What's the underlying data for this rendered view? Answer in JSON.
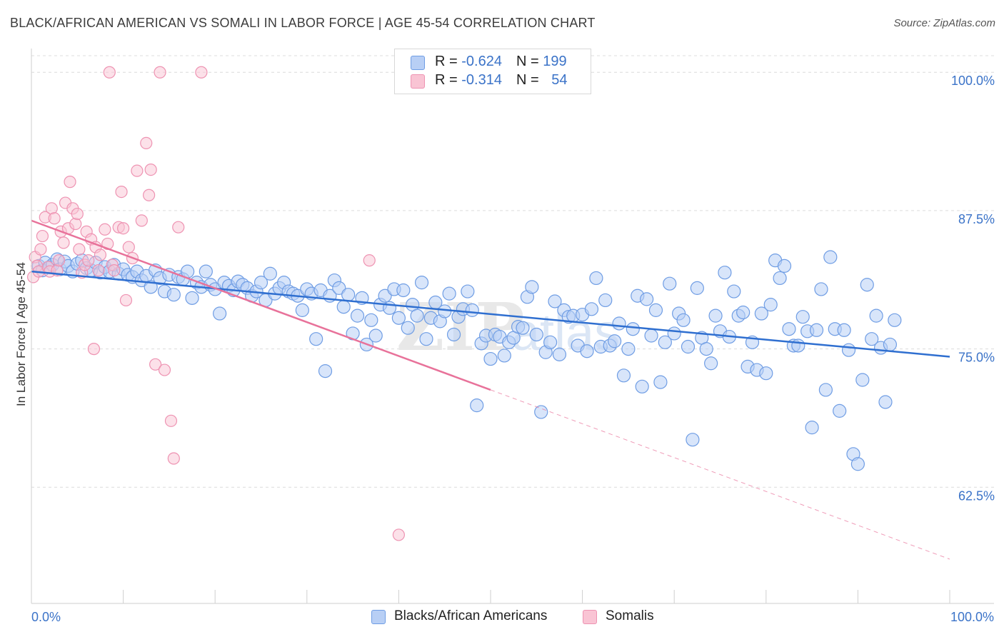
{
  "title": "BLACK/AFRICAN AMERICAN VS SOMALI IN LABOR FORCE | AGE 45-54 CORRELATION CHART",
  "source": "Source: ZipAtlas.com",
  "colors": {
    "blue_fill": "#b8cff5",
    "blue_stroke": "#6f9de4",
    "blue_line": "#2f6fd0",
    "pink_fill": "#f9c4d4",
    "pink_stroke": "#ee93b2",
    "pink_line": "#e8729a",
    "tick_label": "#3b73c8",
    "grid": "#dcdcdc"
  },
  "legend_top": {
    "rows": [
      {
        "r_label": "R = ",
        "r_value": "-0.624",
        "n_label": "N = ",
        "n_value": "199"
      },
      {
        "r_label": "R = ",
        "r_value": "-0.314",
        "n_label": "N = ",
        "n_value": "54"
      }
    ]
  },
  "legend_bottom": [
    "Blacks/African Americans",
    "Somalis"
  ],
  "chart_data": {
    "type": "scatter",
    "ylabel": "In Labor Force | Age 45-54",
    "xlabel": "",
    "x_tick_labels": [
      "0.0%",
      "100.0%"
    ],
    "y_tick_labels": [
      "100.0%",
      "87.5%",
      "75.0%",
      "62.5%"
    ],
    "y_tick_values": [
      100.0,
      87.5,
      75.0,
      62.5
    ],
    "xlim": [
      0,
      100
    ],
    "ylim": [
      52.0,
      101.5
    ],
    "grid": true,
    "watermark": "ZIPatlas",
    "series": [
      {
        "name": "Blacks/African Americans",
        "trend": {
          "x": [
            0,
            100
          ],
          "y": [
            82.0,
            74.3
          ]
        },
        "points": [
          [
            0.8,
            82.5
          ],
          [
            1.2,
            82.1
          ],
          [
            1.5,
            82.8
          ],
          [
            2.0,
            82.4
          ],
          [
            2.3,
            82.6
          ],
          [
            2.8,
            83.1
          ],
          [
            3.1,
            82.2
          ],
          [
            3.6,
            82.9
          ],
          [
            4.0,
            82.5
          ],
          [
            4.5,
            82.0
          ],
          [
            5.0,
            82.7
          ],
          [
            5.5,
            83.0
          ],
          [
            6.0,
            82.3
          ],
          [
            6.5,
            82.1
          ],
          [
            7.0,
            82.8
          ],
          [
            7.5,
            81.9
          ],
          [
            8.0,
            82.4
          ],
          [
            8.5,
            82.0
          ],
          [
            9.0,
            82.6
          ],
          [
            9.5,
            81.8
          ],
          [
            10.0,
            82.2
          ],
          [
            10.5,
            81.7
          ],
          [
            11.0,
            81.5
          ],
          [
            11.5,
            82.0
          ],
          [
            12.0,
            81.2
          ],
          [
            12.5,
            81.6
          ],
          [
            13.0,
            80.6
          ],
          [
            13.5,
            82.1
          ],
          [
            14.0,
            81.4
          ],
          [
            14.5,
            80.2
          ],
          [
            15.0,
            81.7
          ],
          [
            15.5,
            79.9
          ],
          [
            16.0,
            81.5
          ],
          [
            16.5,
            81.3
          ],
          [
            17.0,
            82.0
          ],
          [
            17.5,
            79.6
          ],
          [
            18.0,
            81.0
          ],
          [
            18.5,
            80.6
          ],
          [
            19.0,
            82.0
          ],
          [
            19.5,
            80.8
          ],
          [
            20.0,
            80.4
          ],
          [
            20.5,
            78.2
          ],
          [
            21.0,
            81.0
          ],
          [
            21.5,
            80.7
          ],
          [
            22.0,
            80.3
          ],
          [
            22.5,
            81.1
          ],
          [
            23.0,
            80.8
          ],
          [
            23.5,
            80.5
          ],
          [
            24.0,
            79.8
          ],
          [
            24.5,
            80.2
          ],
          [
            25.0,
            81.0
          ],
          [
            25.5,
            79.4
          ],
          [
            26.0,
            81.8
          ],
          [
            26.5,
            80.0
          ],
          [
            27.0,
            80.5
          ],
          [
            27.5,
            81.0
          ],
          [
            28.0,
            80.2
          ],
          [
            28.5,
            80.0
          ],
          [
            29.0,
            79.8
          ],
          [
            29.5,
            78.5
          ],
          [
            30.0,
            80.4
          ],
          [
            30.5,
            80.0
          ],
          [
            31.0,
            75.9
          ],
          [
            31.5,
            80.3
          ],
          [
            32.0,
            73.0
          ],
          [
            32.5,
            79.8
          ],
          [
            33.0,
            81.2
          ],
          [
            33.5,
            80.5
          ],
          [
            34.0,
            78.8
          ],
          [
            34.5,
            79.9
          ],
          [
            35.0,
            76.4
          ],
          [
            35.5,
            78.0
          ],
          [
            36.0,
            79.6
          ],
          [
            36.5,
            75.4
          ],
          [
            37.0,
            77.6
          ],
          [
            37.5,
            76.2
          ],
          [
            38.0,
            79.0
          ],
          [
            38.5,
            79.8
          ],
          [
            39.0,
            78.7
          ],
          [
            39.5,
            80.4
          ],
          [
            40.0,
            77.8
          ],
          [
            40.5,
            80.3
          ],
          [
            41.0,
            76.9
          ],
          [
            41.5,
            79.0
          ],
          [
            42.0,
            78.0
          ],
          [
            42.5,
            81.0
          ],
          [
            43.0,
            75.9
          ],
          [
            43.5,
            77.8
          ],
          [
            44.0,
            79.2
          ],
          [
            44.5,
            77.5
          ],
          [
            45.0,
            78.4
          ],
          [
            45.5,
            80.0
          ],
          [
            46.0,
            76.3
          ],
          [
            46.5,
            77.9
          ],
          [
            47.0,
            78.6
          ],
          [
            47.5,
            80.2
          ],
          [
            48.0,
            78.5
          ],
          [
            48.5,
            69.9
          ],
          [
            49.0,
            75.5
          ],
          [
            49.5,
            76.2
          ],
          [
            50.0,
            74.1
          ],
          [
            50.5,
            76.3
          ],
          [
            51.0,
            76.1
          ],
          [
            51.5,
            74.4
          ],
          [
            52.0,
            75.6
          ],
          [
            52.5,
            76.0
          ],
          [
            53.0,
            77.0
          ],
          [
            53.5,
            76.9
          ],
          [
            54.0,
            79.7
          ],
          [
            54.5,
            80.6
          ],
          [
            55.0,
            76.3
          ],
          [
            55.5,
            69.3
          ],
          [
            56.0,
            74.7
          ],
          [
            56.5,
            75.6
          ],
          [
            57.0,
            79.3
          ],
          [
            57.5,
            74.5
          ],
          [
            58.0,
            78.5
          ],
          [
            58.5,
            77.9
          ],
          [
            59.0,
            78.0
          ],
          [
            59.5,
            75.3
          ],
          [
            60.0,
            78.1
          ],
          [
            60.5,
            74.8
          ],
          [
            61.0,
            78.6
          ],
          [
            61.5,
            81.4
          ],
          [
            62.0,
            75.2
          ],
          [
            62.5,
            79.4
          ],
          [
            63.0,
            75.3
          ],
          [
            63.5,
            75.7
          ],
          [
            64.0,
            77.3
          ],
          [
            64.5,
            72.6
          ],
          [
            65.0,
            75.0
          ],
          [
            65.5,
            76.8
          ],
          [
            66.0,
            79.8
          ],
          [
            66.5,
            71.6
          ],
          [
            67.0,
            79.5
          ],
          [
            67.5,
            76.2
          ],
          [
            68.0,
            78.5
          ],
          [
            68.5,
            72.0
          ],
          [
            69.0,
            75.6
          ],
          [
            69.5,
            80.9
          ],
          [
            70.0,
            76.4
          ],
          [
            70.5,
            78.2
          ],
          [
            71.0,
            77.6
          ],
          [
            71.5,
            75.2
          ],
          [
            72.0,
            66.8
          ],
          [
            72.5,
            80.5
          ],
          [
            73.0,
            76.0
          ],
          [
            73.5,
            75.0
          ],
          [
            74.0,
            73.7
          ],
          [
            74.5,
            78.0
          ],
          [
            75.0,
            76.6
          ],
          [
            75.5,
            81.9
          ],
          [
            76.0,
            76.1
          ],
          [
            76.5,
            80.2
          ],
          [
            77.0,
            78.0
          ],
          [
            77.5,
            78.3
          ],
          [
            78.0,
            73.4
          ],
          [
            78.5,
            75.6
          ],
          [
            79.0,
            73.1
          ],
          [
            79.5,
            78.2
          ],
          [
            80.0,
            72.8
          ],
          [
            80.5,
            79.0
          ],
          [
            81.0,
            83.0
          ],
          [
            81.5,
            81.4
          ],
          [
            82.0,
            82.5
          ],
          [
            82.5,
            76.8
          ],
          [
            83.0,
            75.3
          ],
          [
            83.5,
            75.3
          ],
          [
            84.0,
            77.9
          ],
          [
            84.5,
            76.6
          ],
          [
            85.0,
            67.9
          ],
          [
            85.5,
            76.7
          ],
          [
            86.0,
            80.4
          ],
          [
            86.5,
            71.3
          ],
          [
            87.0,
            83.3
          ],
          [
            87.5,
            76.8
          ],
          [
            88.0,
            69.4
          ],
          [
            88.5,
            76.7
          ],
          [
            89.0,
            74.9
          ],
          [
            89.5,
            65.5
          ],
          [
            90.0,
            64.6
          ],
          [
            90.5,
            72.2
          ],
          [
            91.0,
            80.8
          ],
          [
            91.5,
            75.9
          ],
          [
            92.0,
            78.0
          ],
          [
            92.5,
            75.1
          ],
          [
            93.0,
            70.2
          ],
          [
            93.5,
            75.4
          ],
          [
            94.0,
            77.6
          ]
        ]
      },
      {
        "name": "Somalis",
        "trend": {
          "x": [
            0,
            50
          ],
          "y": [
            86.6,
            71.3
          ]
        },
        "trend_dashed": {
          "x": [
            50,
            100
          ],
          "y": [
            71.3,
            56.0
          ]
        },
        "points": [
          [
            0.2,
            81.5
          ],
          [
            0.4,
            83.3
          ],
          [
            0.6,
            82.5
          ],
          [
            0.8,
            82.0
          ],
          [
            1.0,
            84.0
          ],
          [
            1.2,
            85.2
          ],
          [
            1.5,
            86.9
          ],
          [
            1.8,
            82.4
          ],
          [
            2.0,
            82.0
          ],
          [
            2.2,
            87.7
          ],
          [
            2.5,
            86.8
          ],
          [
            2.8,
            82.1
          ],
          [
            3.0,
            83.0
          ],
          [
            3.2,
            85.6
          ],
          [
            3.5,
            84.6
          ],
          [
            3.7,
            88.2
          ],
          [
            4.0,
            85.9
          ],
          [
            4.2,
            90.1
          ],
          [
            4.5,
            87.7
          ],
          [
            4.8,
            86.3
          ],
          [
            5.0,
            87.2
          ],
          [
            5.2,
            84.0
          ],
          [
            5.5,
            81.9
          ],
          [
            5.8,
            82.6
          ],
          [
            6.0,
            85.6
          ],
          [
            6.2,
            83.0
          ],
          [
            6.5,
            84.9
          ],
          [
            6.8,
            75.0
          ],
          [
            7.0,
            84.2
          ],
          [
            7.3,
            82.1
          ],
          [
            7.5,
            83.5
          ],
          [
            8.0,
            85.8
          ],
          [
            8.3,
            84.5
          ],
          [
            8.5,
            100.0
          ],
          [
            8.8,
            82.6
          ],
          [
            9.0,
            82.1
          ],
          [
            9.5,
            86.0
          ],
          [
            9.8,
            89.2
          ],
          [
            10.0,
            85.9
          ],
          [
            10.3,
            79.4
          ],
          [
            10.6,
            84.2
          ],
          [
            11.0,
            83.2
          ],
          [
            11.5,
            91.1
          ],
          [
            12.0,
            86.6
          ],
          [
            12.5,
            93.6
          ],
          [
            12.8,
            88.9
          ],
          [
            13.0,
            91.2
          ],
          [
            13.5,
            73.6
          ],
          [
            14.0,
            100.0
          ],
          [
            14.5,
            73.1
          ],
          [
            15.2,
            68.5
          ],
          [
            15.5,
            65.1
          ],
          [
            16.0,
            86.0
          ],
          [
            18.5,
            100.0
          ],
          [
            36.8,
            83.0
          ],
          [
            40.0,
            58.2
          ]
        ]
      }
    ]
  }
}
